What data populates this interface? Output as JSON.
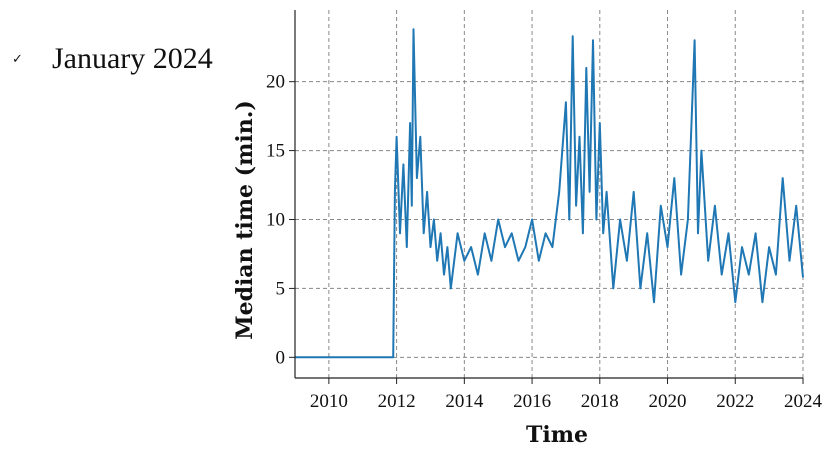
{
  "legend": {
    "check": "✓",
    "label": "January 2024"
  },
  "colors": {
    "series": "#1f77b4",
    "grid": "#888888",
    "axis": "#222222"
  },
  "chart_data": {
    "type": "line",
    "title": "",
    "xlabel": "Time",
    "ylabel": "Median time (min.)",
    "xlim": [
      2009.0,
      2024.0
    ],
    "ylim": [
      -1.5,
      25.2
    ],
    "xticks": [
      2010,
      2012,
      2014,
      2016,
      2018,
      2020,
      2022,
      2024
    ],
    "xtick_labels": [
      "2010",
      "2012",
      "2014",
      "2016",
      "2018",
      "2020",
      "2022",
      "2024"
    ],
    "yticks": [
      0,
      5,
      10,
      15,
      20
    ],
    "ytick_labels": [
      "0",
      "5",
      "10",
      "15",
      "20"
    ],
    "grid": true,
    "series": [
      {
        "x": [
          2009.0,
          2011.9,
          2011.95,
          2012.0,
          2012.1,
          2012.2,
          2012.3,
          2012.4,
          2012.45,
          2012.5,
          2012.6,
          2012.7,
          2012.8,
          2012.9,
          2013.0,
          2013.1,
          2013.2,
          2013.3,
          2013.4,
          2013.5,
          2013.6,
          2013.8,
          2014.0,
          2014.2,
          2014.4,
          2014.6,
          2014.8,
          2015.0,
          2015.2,
          2015.4,
          2015.6,
          2015.8,
          2016.0,
          2016.2,
          2016.4,
          2016.6,
          2016.8,
          2017.0,
          2017.1,
          2017.2,
          2017.3,
          2017.4,
          2017.5,
          2017.6,
          2017.7,
          2017.8,
          2017.9,
          2018.0,
          2018.1,
          2018.2,
          2018.4,
          2018.6,
          2018.8,
          2019.0,
          2019.2,
          2019.4,
          2019.6,
          2019.8,
          2020.0,
          2020.2,
          2020.4,
          2020.6,
          2020.8,
          2020.9,
          2021.0,
          2021.2,
          2021.4,
          2021.6,
          2021.8,
          2022.0,
          2022.2,
          2022.4,
          2022.6,
          2022.8,
          2023.0,
          2023.2,
          2023.4,
          2023.6,
          2023.8,
          2024.0
        ],
        "values": [
          0,
          0,
          12,
          16,
          9,
          14,
          8,
          17,
          11,
          23.8,
          13,
          16,
          9,
          12,
          8,
          10,
          7,
          9,
          6,
          8,
          5,
          9,
          7,
          8,
          6,
          9,
          7,
          10,
          8,
          9,
          7,
          8,
          10,
          7,
          9,
          8,
          12,
          18.5,
          10,
          23.3,
          11,
          16,
          9,
          21,
          12,
          23,
          10,
          17,
          9,
          12,
          5,
          10,
          7,
          12,
          5,
          9,
          4,
          11,
          8,
          13,
          6,
          10,
          23,
          9,
          15,
          7,
          11,
          6,
          9,
          4,
          8,
          6,
          9,
          4,
          8,
          6,
          13,
          7,
          11,
          5.8
        ]
      }
    ]
  }
}
